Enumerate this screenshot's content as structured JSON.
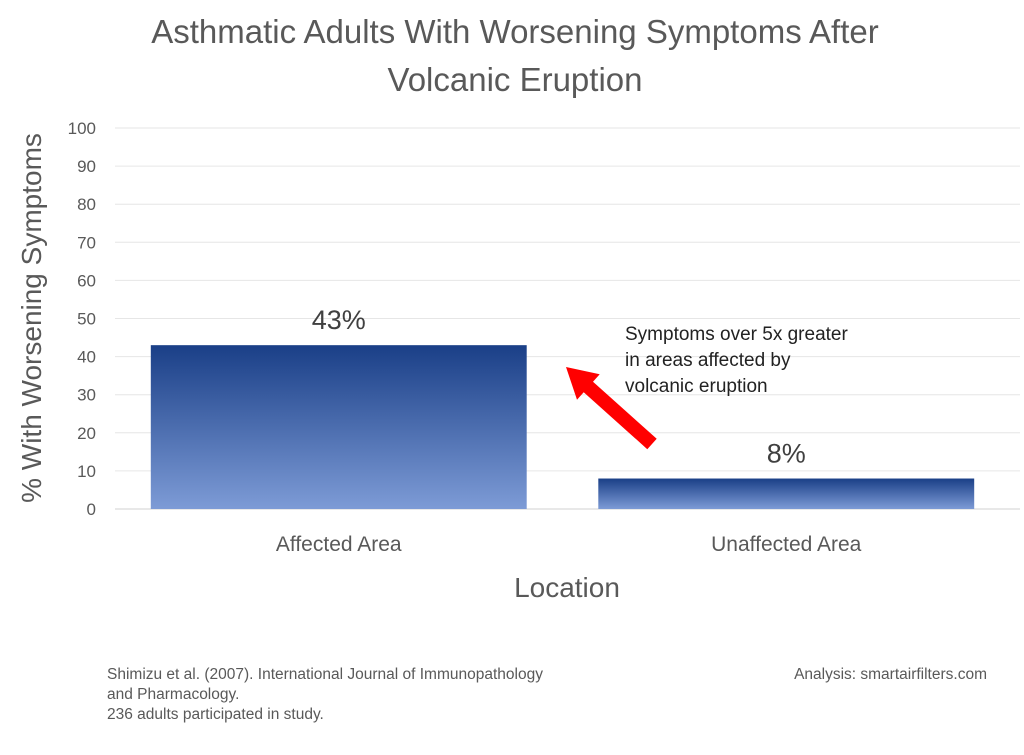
{
  "chart_data": {
    "type": "bar",
    "title": [
      "Asthmatic Adults With Worsening Symptoms After",
      "Volcanic Eruption"
    ],
    "xlabel": "Location",
    "ylabel": "% With Worsening Symptoms",
    "ylim": [
      0,
      100
    ],
    "yticks": [
      "0",
      "10",
      "20",
      "30",
      "40",
      "50",
      "60",
      "70",
      "80",
      "90",
      "100"
    ],
    "categories": [
      "Affected Area",
      "Unaffected Area"
    ],
    "values": [
      43,
      8
    ],
    "data_labels": [
      "43%",
      "8%"
    ],
    "grid": true,
    "bar_color_top": "#1a3f87",
    "bar_color_bottom": "#7d9bd6",
    "annotation": {
      "lines": [
        "Symptoms over 5x greater",
        "in areas affected by",
        "volcanic eruption"
      ],
      "arrow_color": "#ff0000"
    }
  },
  "footer": {
    "source_lines": [
      "Shimizu et al. (2007). International Journal of Immunopathology",
      "and Pharmacology.",
      "236 adults participated in study."
    ],
    "analysis": "Analysis: smartairfilters.com"
  }
}
